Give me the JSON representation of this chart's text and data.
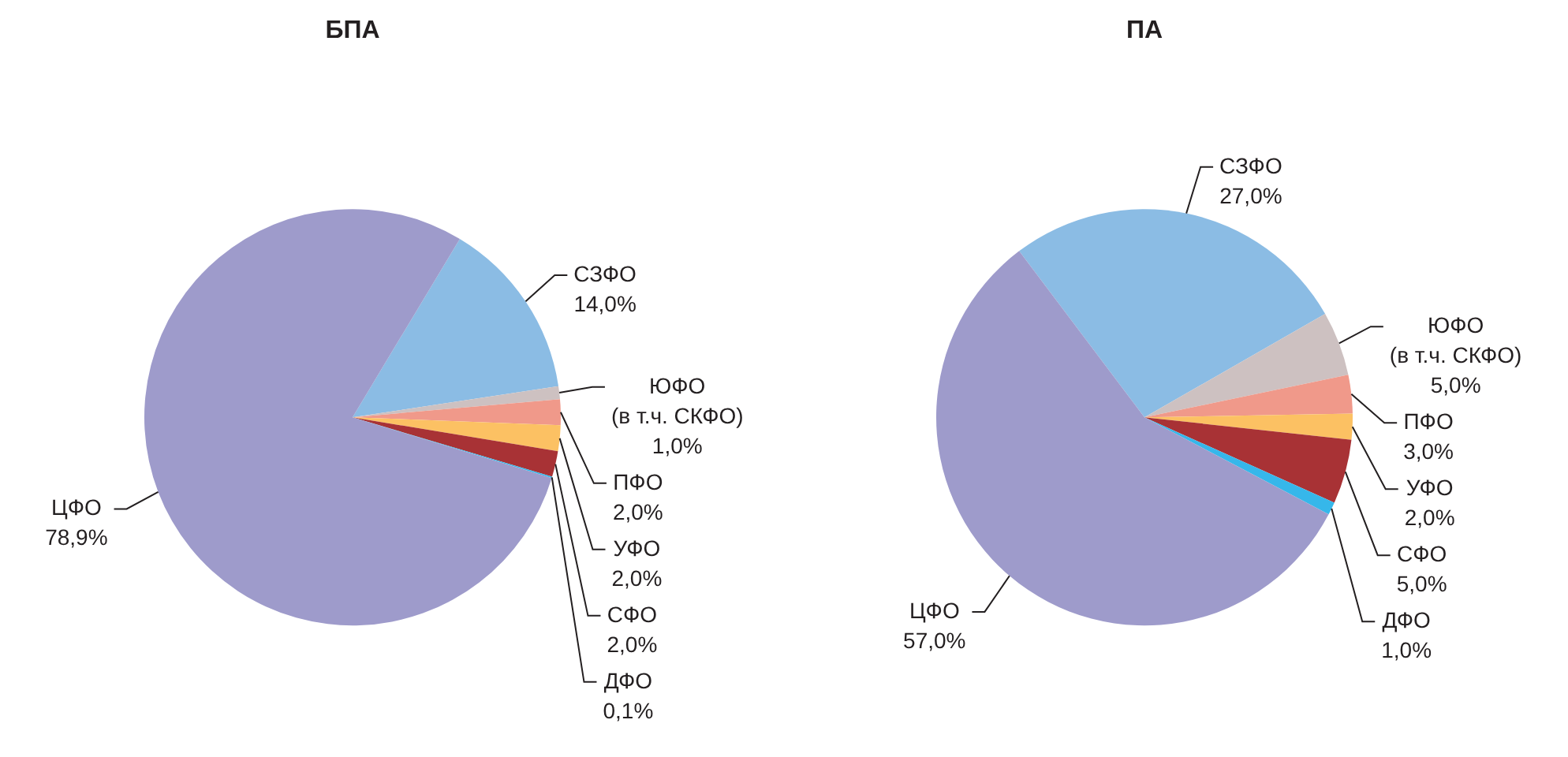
{
  "chart_data": [
    {
      "type": "pie",
      "title": "БПА",
      "categories": [
        "СЗФО",
        "ЮФО\n(в т.ч. СКФО)",
        "ПФО",
        "УФО",
        "СФО",
        "ДФО",
        "ЦФО"
      ],
      "values": [
        14.0,
        1.0,
        2.0,
        2.0,
        2.0,
        0.1,
        78.9
      ],
      "value_labels": [
        "14,0%",
        "1,0%",
        "2,0%",
        "2,0%",
        "2,0%",
        "0,1%",
        "78,9%"
      ],
      "colors": [
        "#8bbce4",
        "#cdc1c1",
        "#f0998a",
        "#fcc163",
        "#a83235",
        "#36b7ea",
        "#9e9bcb"
      ]
    },
    {
      "type": "pie",
      "title": "ПА",
      "categories": [
        "СЗФО",
        "ЮФО\n(в т.ч. СКФО)",
        "ПФО",
        "УФО",
        "СФО",
        "ДФО",
        "ЦФО"
      ],
      "values": [
        27.0,
        5.0,
        3.0,
        2.0,
        5.0,
        1.0,
        57.0
      ],
      "value_labels": [
        "27,0%",
        "5,0%",
        "3,0%",
        "2,0%",
        "5,0%",
        "1,0%",
        "57,0%"
      ],
      "colors": [
        "#8bbce4",
        "#cdc1c1",
        "#f0998a",
        "#fcc163",
        "#a83235",
        "#36b7ea",
        "#9e9bcb"
      ]
    }
  ]
}
